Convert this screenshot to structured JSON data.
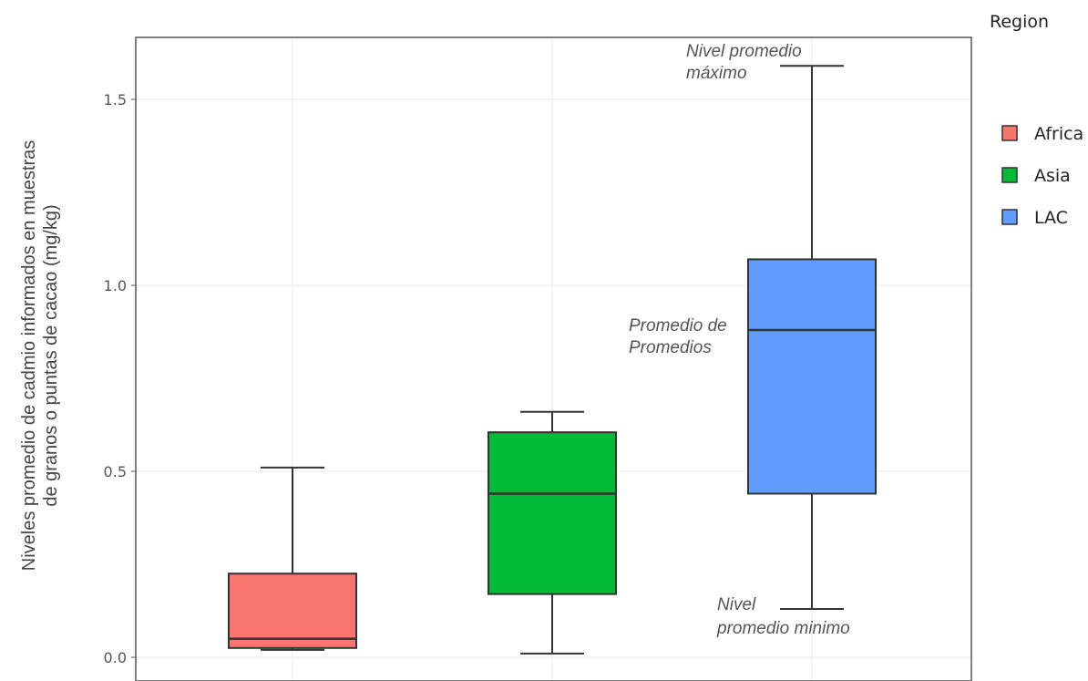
{
  "chart_data": {
    "type": "box",
    "ylabel_lines": [
      "Niveles promedio de cadmio informados en muestras",
      "de granos o puntas de cacao (mg/kg)"
    ],
    "ylim": [
      -0.06,
      1.68
    ],
    "yticks": [
      0.0,
      0.5,
      1.0,
      1.5
    ],
    "ytick_labels": [
      "0.0",
      "0.5",
      "1.0",
      "1.5"
    ],
    "grid": true,
    "legend": {
      "title": "Region",
      "placement": "right",
      "entries": [
        "Africa",
        "Asia",
        "LAC"
      ]
    },
    "series": [
      {
        "name": "Africa",
        "color": "#F8766D",
        "min": 0.02,
        "q1": 0.025,
        "median": 0.05,
        "q3": 0.225,
        "max": 0.51
      },
      {
        "name": "Asia",
        "color": "#00BA38",
        "min": 0.01,
        "q1": 0.17,
        "median": 0.44,
        "q3": 0.605,
        "max": 0.66
      },
      {
        "name": "LAC",
        "color": "#619CFF",
        "min": 0.13,
        "q1": 0.44,
        "median": 0.88,
        "q3": 1.07,
        "max": 1.59
      }
    ],
    "annotations": {
      "max_label": [
        "Nivel promedio",
        "máximo"
      ],
      "median_label": [
        "Promedio de",
        "Promedios"
      ],
      "min_label": [
        "Nivel",
        "promedio minimo"
      ]
    }
  }
}
